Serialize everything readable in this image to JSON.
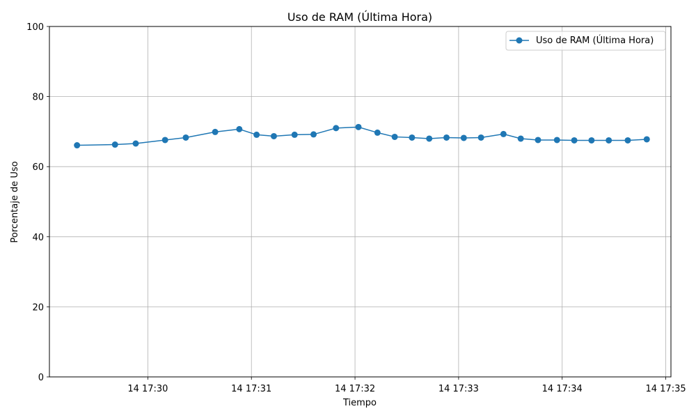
{
  "chart_data": {
    "type": "line",
    "title": "Uso de RAM (Última Hora)",
    "xlabel": "Tiempo",
    "ylabel": "Porcentaje de Uso",
    "ylim": [
      0,
      100
    ],
    "yticks": [
      0,
      20,
      40,
      60,
      80,
      100
    ],
    "xlim": [
      "17:29:03",
      "17:35:03"
    ],
    "xticks": [
      {
        "time": "17:30:00",
        "label": "14 17:30"
      },
      {
        "time": "17:31:00",
        "label": "14 17:31"
      },
      {
        "time": "17:32:00",
        "label": "14 17:32"
      },
      {
        "time": "17:33:00",
        "label": "14 17:33"
      },
      {
        "time": "17:34:00",
        "label": "14 17:34"
      },
      {
        "time": "17:35:00",
        "label": "14 17:35"
      }
    ],
    "grid": true,
    "legend_position": "top-right",
    "color": "#1f77b4",
    "series": [
      {
        "name": "Uso de RAM (Última Hora)",
        "points": [
          {
            "x": "17:29:19",
            "y": 66.1
          },
          {
            "x": "17:29:41",
            "y": 66.3
          },
          {
            "x": "17:29:53",
            "y": 66.6
          },
          {
            "x": "17:30:10",
            "y": 67.6
          },
          {
            "x": "17:30:22",
            "y": 68.3
          },
          {
            "x": "17:30:39",
            "y": 69.9
          },
          {
            "x": "17:30:53",
            "y": 70.7
          },
          {
            "x": "17:31:03",
            "y": 69.1
          },
          {
            "x": "17:31:13",
            "y": 68.7
          },
          {
            "x": "17:31:25",
            "y": 69.1
          },
          {
            "x": "17:31:36",
            "y": 69.2
          },
          {
            "x": "17:31:49",
            "y": 71.0
          },
          {
            "x": "17:32:02",
            "y": 71.3
          },
          {
            "x": "17:32:13",
            "y": 69.7
          },
          {
            "x": "17:32:23",
            "y": 68.5
          },
          {
            "x": "17:32:33",
            "y": 68.3
          },
          {
            "x": "17:32:43",
            "y": 68.0
          },
          {
            "x": "17:32:53",
            "y": 68.3
          },
          {
            "x": "17:33:03",
            "y": 68.2
          },
          {
            "x": "17:33:13",
            "y": 68.3
          },
          {
            "x": "17:33:26",
            "y": 69.3
          },
          {
            "x": "17:33:36",
            "y": 68.0
          },
          {
            "x": "17:33:46",
            "y": 67.6
          },
          {
            "x": "17:33:57",
            "y": 67.6
          },
          {
            "x": "17:34:07",
            "y": 67.5
          },
          {
            "x": "17:34:17",
            "y": 67.5
          },
          {
            "x": "17:34:27",
            "y": 67.5
          },
          {
            "x": "17:34:38",
            "y": 67.5
          },
          {
            "x": "17:34:49",
            "y": 67.8
          }
        ]
      }
    ]
  }
}
